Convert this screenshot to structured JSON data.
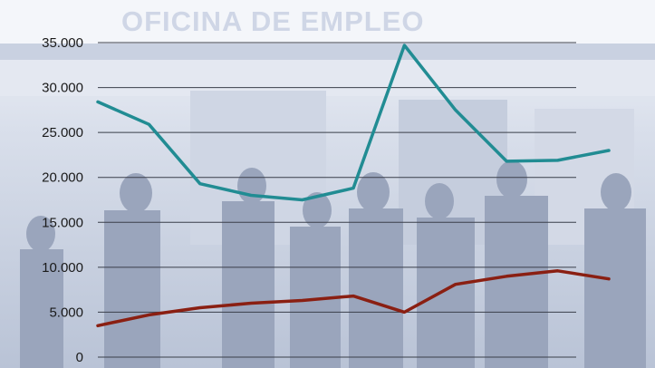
{
  "background": {
    "sign_text": "OFICINA DE EMPLEO"
  },
  "colors": {
    "series_1": "#218c93",
    "series_2": "#8a1f12",
    "gridline": "#3a3f4a",
    "background_tint": "#dfe4ef"
  },
  "chart_data": {
    "type": "line",
    "title": "",
    "xlabel": "",
    "ylabel": "",
    "ylim": [
      0,
      35000
    ],
    "yticks": [
      0,
      5000,
      10000,
      15000,
      20000,
      25000,
      30000,
      35000
    ],
    "ytick_labels": [
      "0",
      "5.000",
      "10.000",
      "15.000",
      "20.000",
      "25.000",
      "30.000",
      "35.000"
    ],
    "grid": true,
    "legend": "none",
    "x": [
      1,
      2,
      3,
      4,
      5,
      6,
      7,
      8,
      9,
      10,
      11,
      12
    ],
    "series": [
      {
        "values": [
          28400,
          25900,
          19300,
          18000,
          17500,
          18800,
          34700,
          27500,
          21800,
          21900,
          23000,
          null
        ]
      },
      {
        "values": [
          3500,
          4700,
          5500,
          6000,
          6300,
          6800,
          5000,
          8100,
          9000,
          9600,
          8700,
          null
        ]
      }
    ]
  }
}
